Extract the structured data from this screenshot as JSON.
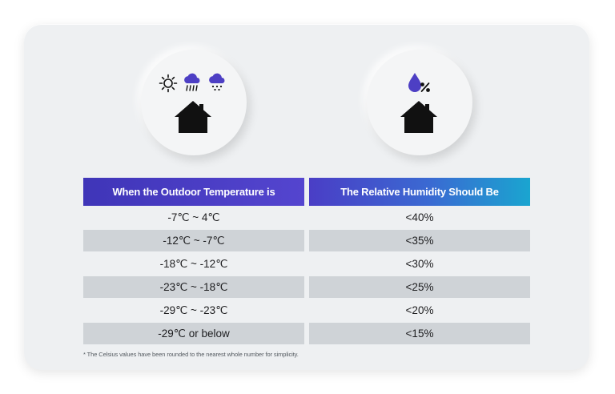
{
  "icons": {
    "left": [
      "sun-icon",
      "rain-cloud-icon",
      "snow-cloud-icon",
      "house-icon"
    ],
    "right": [
      "water-drop-icon",
      "percent-icon",
      "house-icon"
    ]
  },
  "table": {
    "headers": [
      "When the Outdoor Temperature is",
      "The Relative Humidity Should Be"
    ],
    "rows": [
      {
        "temperature": "-7℃ ~ 4℃",
        "humidity": "<40%"
      },
      {
        "temperature": "-12℃ ~ -7℃",
        "humidity": "<35%"
      },
      {
        "temperature": "-18℃ ~ -12℃",
        "humidity": "<30%"
      },
      {
        "temperature": "-23℃ ~ -18℃",
        "humidity": "<25%"
      },
      {
        "temperature": "-29℃ ~ -23℃",
        "humidity": "<20%"
      },
      {
        "temperature": "-29℃ or below",
        "humidity": "<15%"
      }
    ]
  },
  "footnote": "* The Celsius values have been rounded to the nearest whole number for simplicity.",
  "colors": {
    "header_left": "#4a3ec6",
    "header_right_end": "#1aa5d0",
    "icon_purple": "#4d3fc4",
    "icon_black": "#111111",
    "row_shade": "#cfd3d7"
  }
}
